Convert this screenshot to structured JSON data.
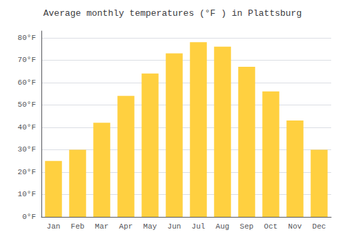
{
  "chart_data": {
    "type": "bar",
    "title": "Average monthly temperatures (°F ) in Plattsburg",
    "categories": [
      "Jan",
      "Feb",
      "Mar",
      "Apr",
      "May",
      "Jun",
      "Jul",
      "Aug",
      "Sep",
      "Oct",
      "Nov",
      "Dec"
    ],
    "values": [
      25,
      30,
      42,
      54,
      64,
      73,
      78,
      76,
      67,
      56,
      43,
      30
    ],
    "color": "#FFD040",
    "ylim": [
      0,
      83
    ],
    "yticks": [
      {
        "value": 0,
        "label": "0°F"
      },
      {
        "value": 10,
        "label": "10°F"
      },
      {
        "value": 20,
        "label": "20°F"
      },
      {
        "value": 30,
        "label": "30°F"
      },
      {
        "value": 40,
        "label": "40°F"
      },
      {
        "value": 50,
        "label": "50°F"
      },
      {
        "value": 60,
        "label": "60°F"
      },
      {
        "value": 70,
        "label": "70°F"
      },
      {
        "value": 80,
        "label": "80°F"
      }
    ],
    "grid": true
  }
}
